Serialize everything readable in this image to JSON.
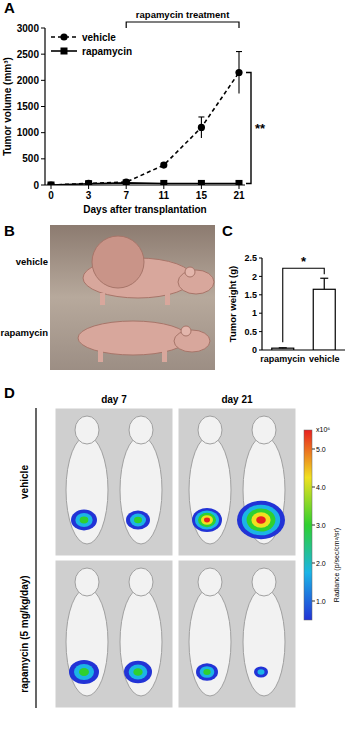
{
  "chart_data": [
    {
      "type": "line",
      "categories": [
        "0",
        "3",
        "7",
        "11",
        "15",
        "21"
      ],
      "xlabel": "Days after transplantation",
      "ylabel": "Tumor volume (mm³)",
      "ylim": [
        0,
        3000
      ],
      "yticks": [
        0,
        500,
        1000,
        1500,
        2000,
        2500,
        3000
      ],
      "legend": "upper left",
      "series": [
        {
          "name": "vehicle",
          "color": "#000000",
          "marker": "circle",
          "line_style": "dashed",
          "values": [
            0,
            30,
            55,
            380,
            1100,
            2150
          ],
          "errors": [
            0,
            10,
            15,
            40,
            200,
            400
          ]
        },
        {
          "name": "rapamycin",
          "color": "#000000",
          "marker": "square",
          "line_style": "solid",
          "values": [
            0,
            25,
            40,
            30,
            30,
            30
          ],
          "errors": [
            0,
            5,
            5,
            5,
            5,
            5
          ]
        }
      ],
      "annotations": [
        {
          "text": "rapamycin treatment",
          "from": "7",
          "to": "21"
        },
        {
          "text": "**"
        }
      ]
    },
    {
      "type": "bar",
      "categories": [
        "rapamycin",
        "vehicle"
      ],
      "values": [
        0.05,
        1.65
      ],
      "errors": [
        0.01,
        0.3
      ],
      "color": "#ffffff",
      "ylabel": "Tumor weight (g)",
      "ylim": [
        0,
        2.5
      ],
      "yticks": [
        0,
        0.5,
        1,
        1.5,
        2,
        2.5
      ],
      "annotations": [
        {
          "text": "*"
        }
      ]
    }
  ],
  "figure": {
    "panel_labels": [
      "A",
      "B",
      "C",
      "D"
    ]
  },
  "photo": {
    "rows": [
      "vehicle",
      "rapamycin"
    ]
  },
  "imaging": {
    "columns": [
      "day 7",
      "day 21"
    ],
    "rows": [
      "vehicle",
      "rapamycin (5 mg/kg/day)"
    ],
    "colorbar": {
      "range": [
        0.5,
        5.5
      ],
      "ticks": [
        {
          "value": 1,
          "label": "1.0"
        },
        {
          "value": 2,
          "label": "2.0"
        },
        {
          "value": 3,
          "label": "3.0"
        },
        {
          "value": 4,
          "label": "4.0"
        },
        {
          "value": 5,
          "label": "5.0"
        }
      ],
      "multiplier": "x10⁶",
      "label": "Radiance (p/sec/cm²/sr)"
    }
  }
}
